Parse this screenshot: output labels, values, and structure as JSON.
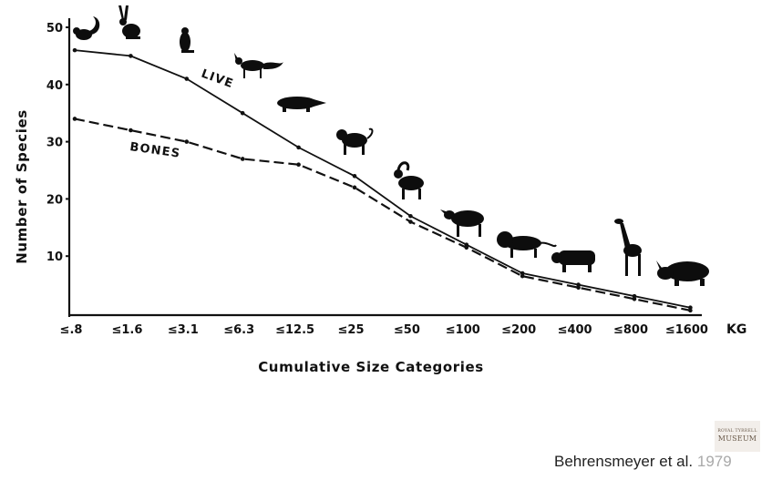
{
  "chart_data": {
    "type": "line",
    "categories": [
      "≤.8",
      "≤1.6",
      "≤3.1",
      "≤6.3",
      "≤12.5",
      "≤25",
      "≤50",
      "≤100",
      "≤200",
      "≤400",
      "≤800",
      "≤1600"
    ],
    "series": [
      {
        "name": "LIVE",
        "style": "solid",
        "values": [
          46,
          45,
          41,
          35,
          29,
          24,
          17,
          12,
          7,
          5,
          3,
          1
        ]
      },
      {
        "name": "BONES",
        "style": "dashed",
        "values": [
          34,
          32,
          30,
          27,
          26,
          22,
          16,
          11.5,
          6.5,
          4.5,
          2.5,
          0.5
        ]
      }
    ],
    "xlabel": "Cumulative Size Categories",
    "ylabel": "Number of Species",
    "unit_label": "KG",
    "ylim": [
      0,
      50
    ],
    "yticks": [
      10,
      20,
      30,
      40,
      50
    ],
    "grid": false,
    "legend": "inline labels on lines",
    "animal_silhouettes": [
      "squirrel-icon",
      "hare-icon",
      "prairie-dog-icon",
      "fox-icon",
      "badger-icon",
      "baboon-icon",
      "goat-icon",
      "wildebeest-icon",
      "lion-icon",
      "buffalo-icon",
      "giraffe-icon",
      "rhino-icon"
    ],
    "colors": {
      "ink": "#111111",
      "background": "#ffffff"
    }
  },
  "credit": {
    "text": "Behrensmeyer et al.",
    "year": "1979"
  },
  "logo": {
    "line1": "ROYAL TYRRELL",
    "line2": "MUSEUM"
  }
}
